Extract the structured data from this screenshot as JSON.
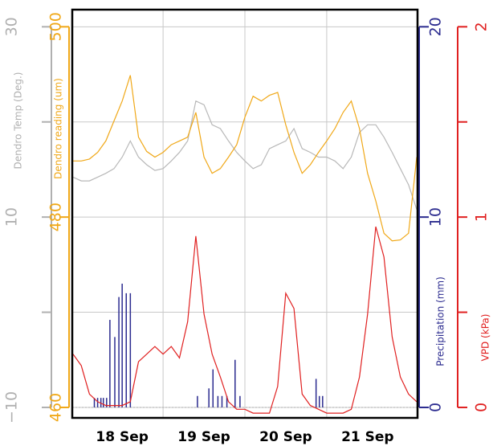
{
  "chart_data": {
    "type": "multi-axis-line",
    "xlim": [
      -0.11,
      4.11
    ],
    "xticks": [
      {
        "value": 0.5,
        "label": "18 Sep"
      },
      {
        "value": 1.5,
        "label": "19 Sep"
      },
      {
        "value": 2.5,
        "label": "20 Sep"
      },
      {
        "value": 3.5,
        "label": "21 Sep"
      }
    ],
    "xminor": [
      1,
      2,
      3
    ],
    "axes": [
      {
        "label": "Dendro Temp (Deg.)",
        "color": "#b0b0b0",
        "lim": [
          -11.1,
          31.8
        ],
        "ticks": [
          {
            "value": -10,
            "label": "−10"
          },
          10,
          30
        ],
        "minor": [
          0,
          20
        ],
        "grid": true
      },
      {
        "label": "Dendro reading (um)",
        "color": "#f0a818",
        "lim": [
          458.9,
          501.8
        ],
        "ticks": [
          460,
          480,
          500
        ]
      },
      {
        "label": "Precipitation (mm)",
        "color": "#2b2b8f",
        "lim": [
          -0.55,
          20.9
        ],
        "ticks": [
          0,
          10,
          20
        ]
      },
      {
        "label": "VPD (kPa)",
        "color": "#e02020",
        "lim": [
          -0.055,
          2.09
        ],
        "ticks": [
          0,
          1,
          2
        ],
        "minor": [
          0.5,
          1.5
        ]
      }
    ],
    "x": [
      -0.1,
      0.0,
      0.1,
      0.2,
      0.3,
      0.4,
      0.5,
      0.6,
      0.7,
      0.8,
      0.9,
      1.0,
      1.1,
      1.2,
      1.3,
      1.4,
      1.5,
      1.6,
      1.7,
      1.8,
      1.9,
      2.0,
      2.1,
      2.2,
      2.3,
      2.4,
      2.5,
      2.6,
      2.7,
      2.8,
      2.9,
      3.0,
      3.1,
      3.2,
      3.3,
      3.4,
      3.5,
      3.6,
      3.7,
      3.8,
      3.9,
      4.0,
      4.1
    ],
    "series": [
      {
        "type": "line",
        "axis": 0,
        "color": "#b8b8b8",
        "values": [
          14.2,
          13.8,
          13.8,
          14.2,
          14.6,
          15.1,
          16.3,
          18.0,
          16.3,
          15.5,
          14.9,
          15.1,
          15.9,
          16.8,
          18.0,
          22.2,
          21.8,
          19.7,
          19.3,
          18.0,
          16.8,
          15.9,
          15.1,
          15.5,
          17.2,
          17.6,
          18.0,
          19.3,
          17.2,
          16.8,
          16.3,
          16.3,
          15.9,
          15.1,
          16.3,
          18.9,
          19.7,
          19.7,
          18.4,
          16.8,
          15.1,
          13.4,
          10.8
        ]
      },
      {
        "type": "line",
        "axis": 1,
        "color": "#f0a818",
        "values": [
          485.9,
          485.9,
          486.1,
          486.8,
          488.0,
          490.1,
          492.2,
          494.9,
          488.4,
          486.9,
          486.3,
          486.8,
          487.6,
          488.0,
          488.4,
          491.0,
          486.3,
          484.6,
          485.1,
          486.3,
          487.6,
          490.5,
          492.7,
          492.2,
          492.8,
          493.1,
          489.7,
          486.8,
          484.6,
          485.5,
          486.8,
          488.0,
          489.3,
          491.0,
          492.2,
          489.3,
          484.6,
          481.7,
          478.3,
          477.5,
          477.6,
          478.3,
          486.3
        ]
      },
      {
        "type": "bar",
        "axis": 2,
        "color": "#2b2b8f",
        "x": [
          0.16,
          0.2,
          0.24,
          0.27,
          0.31,
          0.35,
          0.41,
          0.46,
          0.5,
          0.55,
          0.6,
          1.42,
          1.56,
          1.61,
          1.67,
          1.72,
          1.78,
          1.88,
          1.94,
          2.87,
          2.91,
          2.95
        ],
        "values": [
          0.5,
          0.5,
          0.5,
          0.5,
          0.5,
          4.6,
          3.7,
          5.8,
          6.5,
          6,
          6,
          0.6,
          1,
          2,
          0.6,
          0.6,
          0.6,
          2.5,
          0.6,
          1.5,
          0.6,
          0.6
        ]
      },
      {
        "type": "line",
        "axis": 3,
        "color": "#e02020",
        "values": [
          0.28,
          0.22,
          0.07,
          0.03,
          0.01,
          0.01,
          0.01,
          0.03,
          0.24,
          0.28,
          0.32,
          0.28,
          0.32,
          0.26,
          0.45,
          0.9,
          0.49,
          0.28,
          0.16,
          0.03,
          -0.01,
          -0.01,
          -0.03,
          -0.03,
          -0.03,
          0.11,
          0.6,
          0.52,
          0.07,
          0.01,
          -0.01,
          -0.03,
          -0.03,
          -0.03,
          -0.01,
          0.16,
          0.49,
          0.95,
          0.79,
          0.37,
          0.16,
          0.07,
          0.03
        ]
      }
    ]
  }
}
